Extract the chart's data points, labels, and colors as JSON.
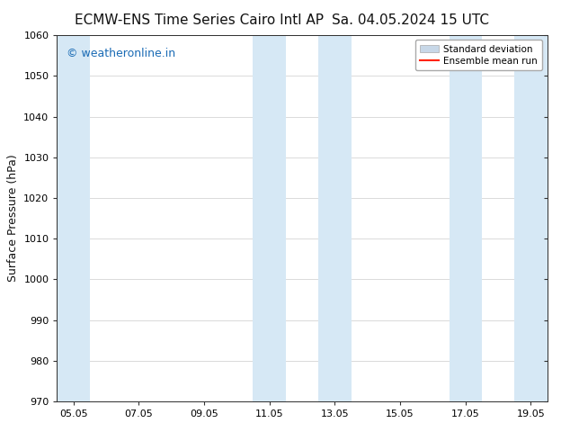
{
  "title_left": "ECMW-ENS Time Series Cairo Intl AP",
  "title_right": "Sa. 04.05.2024 15 UTC",
  "ylabel": "Surface Pressure (hPa)",
  "ylim": [
    970,
    1060
  ],
  "yticks": [
    970,
    980,
    990,
    1000,
    1010,
    1020,
    1030,
    1040,
    1050,
    1060
  ],
  "xtick_positions": [
    0,
    2,
    4,
    6,
    8,
    10,
    12,
    14
  ],
  "xtick_labels": [
    "05.05",
    "07.05",
    "09.05",
    "11.05",
    "13.05",
    "15.05",
    "17.05",
    "19.05"
  ],
  "xlim": [
    -0.5,
    14.5
  ],
  "background_color": "#ffffff",
  "plot_bg_color": "#ffffff",
  "shaded_bands": [
    {
      "x_start": -0.5,
      "x_end": 0.5
    },
    {
      "x_start": 5.5,
      "x_end": 6.5
    },
    {
      "x_start": 7.5,
      "x_end": 8.5
    },
    {
      "x_start": 11.5,
      "x_end": 12.5
    },
    {
      "x_start": 13.5,
      "x_end": 14.5
    }
  ],
  "band_color": "#d6e8f5",
  "watermark_text": "© weatheronline.in",
  "watermark_color": "#1a6bb5",
  "watermark_fontsize": 9,
  "legend_std_label": "Standard deviation",
  "legend_mean_label": "Ensemble mean run",
  "legend_std_color": "#c8d8e8",
  "legend_std_edge": "#aaaaaa",
  "legend_mean_color": "#ff2200",
  "title_fontsize": 11,
  "tick_fontsize": 8,
  "ylabel_fontsize": 9,
  "spine_color": "#333333",
  "font_color": "#111111"
}
